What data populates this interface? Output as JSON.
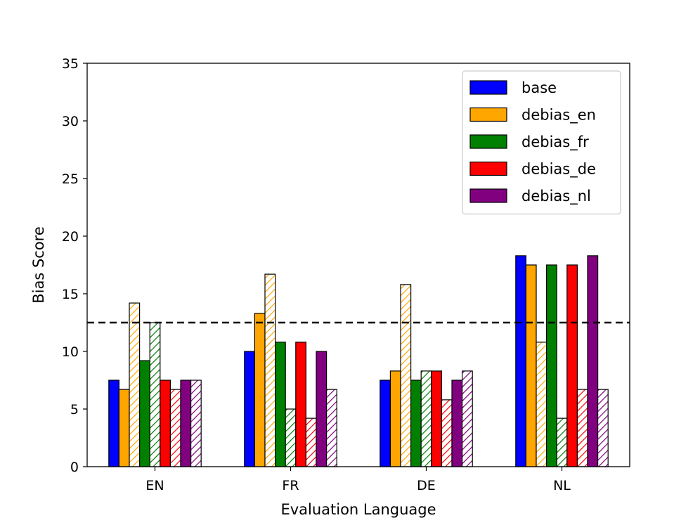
{
  "chart_data": {
    "type": "bar",
    "xlabel": "Evaluation Language",
    "ylabel": "Bias Score",
    "ylim": [
      0,
      35
    ],
    "yticks": [
      0,
      5,
      10,
      15,
      20,
      25,
      30,
      35
    ],
    "categories": [
      "EN",
      "FR",
      "DE",
      "NL"
    ],
    "reference_line": {
      "value": 12.5,
      "style": "dashed",
      "color": "#000000"
    },
    "legend_position": "top-right",
    "series": [
      {
        "name": "base",
        "color": "#0000ff",
        "values": [
          7.5,
          10.0,
          7.5,
          18.3
        ],
        "hatched_values": null
      },
      {
        "name": "debias_en",
        "color": "#ffa500",
        "values": [
          6.7,
          13.3,
          8.3,
          17.5
        ],
        "hatched_values": [
          14.2,
          16.7,
          15.8,
          10.8
        ]
      },
      {
        "name": "debias_fr",
        "color": "#008000",
        "values": [
          9.2,
          10.8,
          7.5,
          17.5
        ],
        "hatched_values": [
          12.5,
          5.0,
          8.3,
          4.2
        ]
      },
      {
        "name": "debias_de",
        "color": "#ff0000",
        "values": [
          7.5,
          10.8,
          8.3,
          17.5
        ],
        "hatched_values": [
          6.7,
          4.2,
          5.8,
          6.7
        ]
      },
      {
        "name": "debias_nl",
        "color": "#800080",
        "values": [
          7.5,
          10.0,
          7.5,
          18.3
        ],
        "hatched_values": [
          7.5,
          6.7,
          8.3,
          6.7
        ]
      }
    ]
  }
}
